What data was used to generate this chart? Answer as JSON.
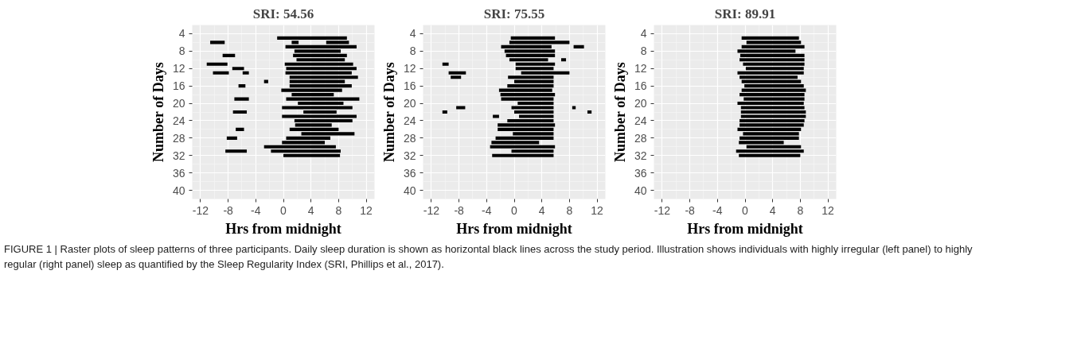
{
  "chart_data": [
    {
      "type": "bar",
      "orientation": "horizontal",
      "title": "SRI: 54.56",
      "xlabel": "Hrs from midnight",
      "ylabel": "Number of Days",
      "xlim": [
        -13.2,
        13.2
      ],
      "ylim": [
        42,
        2
      ],
      "xticks": [
        -12,
        -8,
        -4,
        0,
        4,
        8,
        12
      ],
      "yticks": [
        4,
        8,
        12,
        16,
        20,
        24,
        28,
        32,
        36,
        40
      ],
      "grid": true,
      "annotations": [
        "FIGURE 1 | Raster plots of sleep patterns  of three participants. Daily sleep duration is shown as horizontal black lines across the study period. Illustration shows individuals with highly irregular (left panel) to highly regular (right panel) sleep as quantified by the Sleep Regularity Index (SRI, Phillips et al., 2017)."
      ],
      "series": [
        {
          "color": "#000000",
          "x": [
            5,
            6,
            7,
            8,
            9,
            10,
            11,
            12,
            13,
            14,
            15,
            16,
            17,
            18,
            19,
            20,
            21,
            22,
            23,
            24,
            25,
            26,
            27,
            28,
            29,
            30,
            31,
            32
          ],
          "base": [
            -0.9,
            6.2,
            0.3,
            1.6,
            1.4,
            1.9,
            0.2,
            0.4,
            0.3,
            0.9,
            0.9,
            0.9,
            -0.3,
            1.2,
            0.4,
            2.1,
            -0.2,
            2.9,
            -0.2,
            1.6,
            1.7,
            0.9,
            2.6,
            0.4,
            -0.2,
            -2.8,
            -1.8,
            0.0
          ],
          "values": [
            10.1,
            3.3,
            10.3,
            6.7,
            7.8,
            7.0,
            9.9,
            10.2,
            9.6,
            9.9,
            8.0,
            9.0,
            8.8,
            6.1,
            10.6,
            6.6,
            10.2,
            4.8,
            10.8,
            8.4,
            5.3,
            7.1,
            7.7,
            6.4,
            6.2,
            10.4,
            10.1,
            8.2
          ]
        },
        {
          "color": "#000000",
          "x": [
            6,
            9,
            11,
            12,
            13,
            15,
            16,
            19,
            22,
            26,
            28,
            31
          ],
          "base": [
            -10.6,
            -8.8,
            -11.1,
            -7.4,
            -10.2,
            -2.8,
            -6.5,
            -7.1,
            -7.3,
            -6.9,
            -8.2,
            -8.4
          ],
          "values": [
            2.1,
            1.8,
            3.0,
            1.7,
            2.3,
            0.6,
            1.0,
            2.1,
            2.0,
            1.2,
            1.5,
            3.1
          ]
        },
        {
          "color": "#000000",
          "x": [
            6,
            13
          ],
          "base": [
            1.2,
            -5.9
          ],
          "values": [
            1.0,
            0.9
          ]
        }
      ]
    },
    {
      "type": "bar",
      "orientation": "horizontal",
      "title": "SRI: 75.55",
      "xlabel": "Hrs from midnight",
      "ylabel": "Number of Days",
      "xlim": [
        -13.2,
        13.2
      ],
      "ylim": [
        42,
        2
      ],
      "xticks": [
        -12,
        -8,
        -4,
        0,
        4,
        8,
        12
      ],
      "yticks": [
        4,
        8,
        12,
        16,
        20,
        24,
        28,
        32,
        36,
        40
      ],
      "grid": true,
      "series": [
        {
          "color": "#000000",
          "x": [
            5,
            6,
            7,
            8,
            9,
            10,
            11,
            12,
            13,
            14,
            15,
            16,
            17,
            18,
            19,
            20,
            21,
            22,
            23,
            24,
            25,
            26,
            27,
            28,
            29,
            30,
            31,
            32
          ],
          "base": [
            -0.5,
            -0.7,
            -1.9,
            -1.4,
            -1.2,
            -0.7,
            0.2,
            0.2,
            1.0,
            -0.9,
            0.0,
            -1.0,
            -2.2,
            -2.0,
            -1.9,
            0.5,
            -0.4,
            0.0,
            0.7,
            -1.0,
            -2.4,
            -2.4,
            -0.2,
            -2.7,
            -3.3,
            -3.5,
            -0.4,
            -3.2
          ],
          "values": [
            6.4,
            8.7,
            7.3,
            7.3,
            7.1,
            5.6,
            5.7,
            5.5,
            7.0,
            6.6,
            5.7,
            6.7,
            7.7,
            7.9,
            7.6,
            5.2,
            6.1,
            5.7,
            5.0,
            6.7,
            8.3,
            8.1,
            5.9,
            8.4,
            6.9,
            9.4,
            6.1,
            8.9
          ]
        },
        {
          "color": "#000000",
          "x": [
            7,
            10,
            11,
            13,
            14,
            21,
            22,
            23
          ],
          "base": [
            8.6,
            6.8,
            -10.4,
            -9.5,
            -9.2,
            -8.4,
            -10.4,
            -3.1
          ],
          "values": [
            1.5,
            0.7,
            0.9,
            2.5,
            1.5,
            1.3,
            0.7,
            0.9
          ]
        },
        {
          "color": "#000000",
          "x": [
            21,
            22
          ],
          "base": [
            8.4,
            10.6
          ],
          "values": [
            0.5,
            0.6
          ]
        }
      ]
    },
    {
      "type": "bar",
      "orientation": "horizontal",
      "title": "SRI: 89.91",
      "xlabel": "Hrs from midnight",
      "ylabel": "Number of Days",
      "xlim": [
        -13.2,
        13.2
      ],
      "ylim": [
        42,
        2
      ],
      "xticks": [
        -12,
        -8,
        -4,
        0,
        4,
        8,
        12
      ],
      "yticks": [
        4,
        8,
        12,
        16,
        20,
        24,
        28,
        32,
        36,
        40
      ],
      "grid": true,
      "series": [
        {
          "color": "#000000",
          "x": [
            5,
            6,
            7,
            8,
            9,
            10,
            11,
            12,
            13,
            14,
            15,
            16,
            17,
            18,
            19,
            20,
            21,
            22,
            23,
            24,
            25,
            26,
            27,
            28,
            29,
            30,
            31,
            32
          ],
          "base": [
            -0.5,
            0.2,
            -0.5,
            -1.1,
            -0.7,
            -0.8,
            -0.3,
            0.1,
            -1.1,
            -0.8,
            -0.5,
            -0.1,
            -0.5,
            -0.8,
            -0.2,
            -1.1,
            -0.6,
            -0.6,
            -0.6,
            -0.8,
            -0.8,
            -1.1,
            -0.3,
            -0.8,
            -0.9,
            0.2,
            -1.3,
            -0.9
          ],
          "values": [
            8.3,
            7.9,
            9.1,
            8.4,
            9.3,
            9.4,
            8.9,
            8.4,
            9.6,
            8.4,
            8.6,
            8.6,
            9.3,
            9.4,
            8.8,
            9.6,
            9.2,
            9.4,
            9.4,
            9.4,
            9.3,
            9.2,
            8.1,
            8.6,
            6.5,
            7.9,
            9.8,
            8.9
          ]
        }
      ]
    }
  ]
}
